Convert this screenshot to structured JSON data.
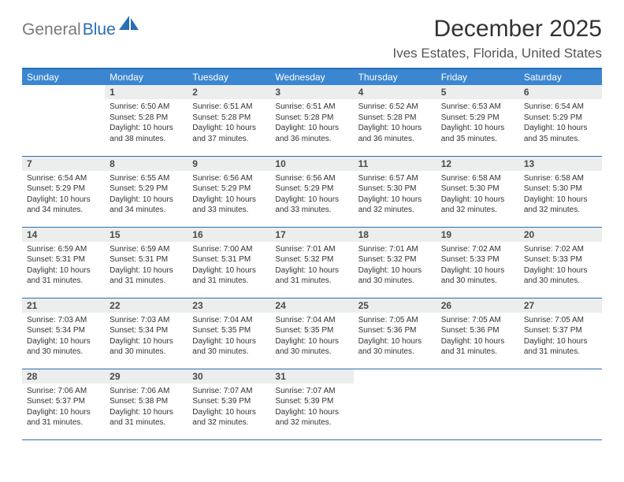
{
  "logo": {
    "part1": "General",
    "part2": "Blue"
  },
  "title": "December 2025",
  "location": "Ives Estates, Florida, United States",
  "colors": {
    "header_bg": "#3a86d1",
    "border": "#2a6db6",
    "daynum_bg": "#eceded",
    "logo_gray": "#7a7a7a",
    "logo_blue": "#2a6db6"
  },
  "weekdays": [
    "Sunday",
    "Monday",
    "Tuesday",
    "Wednesday",
    "Thursday",
    "Friday",
    "Saturday"
  ],
  "weeks": [
    [
      {
        "n": "",
        "sr": "",
        "ss": "",
        "dl": ""
      },
      {
        "n": "1",
        "sr": "Sunrise: 6:50 AM",
        "ss": "Sunset: 5:28 PM",
        "dl": "Daylight: 10 hours and 38 minutes."
      },
      {
        "n": "2",
        "sr": "Sunrise: 6:51 AM",
        "ss": "Sunset: 5:28 PM",
        "dl": "Daylight: 10 hours and 37 minutes."
      },
      {
        "n": "3",
        "sr": "Sunrise: 6:51 AM",
        "ss": "Sunset: 5:28 PM",
        "dl": "Daylight: 10 hours and 36 minutes."
      },
      {
        "n": "4",
        "sr": "Sunrise: 6:52 AM",
        "ss": "Sunset: 5:28 PM",
        "dl": "Daylight: 10 hours and 36 minutes."
      },
      {
        "n": "5",
        "sr": "Sunrise: 6:53 AM",
        "ss": "Sunset: 5:29 PM",
        "dl": "Daylight: 10 hours and 35 minutes."
      },
      {
        "n": "6",
        "sr": "Sunrise: 6:54 AM",
        "ss": "Sunset: 5:29 PM",
        "dl": "Daylight: 10 hours and 35 minutes."
      }
    ],
    [
      {
        "n": "7",
        "sr": "Sunrise: 6:54 AM",
        "ss": "Sunset: 5:29 PM",
        "dl": "Daylight: 10 hours and 34 minutes."
      },
      {
        "n": "8",
        "sr": "Sunrise: 6:55 AM",
        "ss": "Sunset: 5:29 PM",
        "dl": "Daylight: 10 hours and 34 minutes."
      },
      {
        "n": "9",
        "sr": "Sunrise: 6:56 AM",
        "ss": "Sunset: 5:29 PM",
        "dl": "Daylight: 10 hours and 33 minutes."
      },
      {
        "n": "10",
        "sr": "Sunrise: 6:56 AM",
        "ss": "Sunset: 5:29 PM",
        "dl": "Daylight: 10 hours and 33 minutes."
      },
      {
        "n": "11",
        "sr": "Sunrise: 6:57 AM",
        "ss": "Sunset: 5:30 PM",
        "dl": "Daylight: 10 hours and 32 minutes."
      },
      {
        "n": "12",
        "sr": "Sunrise: 6:58 AM",
        "ss": "Sunset: 5:30 PM",
        "dl": "Daylight: 10 hours and 32 minutes."
      },
      {
        "n": "13",
        "sr": "Sunrise: 6:58 AM",
        "ss": "Sunset: 5:30 PM",
        "dl": "Daylight: 10 hours and 32 minutes."
      }
    ],
    [
      {
        "n": "14",
        "sr": "Sunrise: 6:59 AM",
        "ss": "Sunset: 5:31 PM",
        "dl": "Daylight: 10 hours and 31 minutes."
      },
      {
        "n": "15",
        "sr": "Sunrise: 6:59 AM",
        "ss": "Sunset: 5:31 PM",
        "dl": "Daylight: 10 hours and 31 minutes."
      },
      {
        "n": "16",
        "sr": "Sunrise: 7:00 AM",
        "ss": "Sunset: 5:31 PM",
        "dl": "Daylight: 10 hours and 31 minutes."
      },
      {
        "n": "17",
        "sr": "Sunrise: 7:01 AM",
        "ss": "Sunset: 5:32 PM",
        "dl": "Daylight: 10 hours and 31 minutes."
      },
      {
        "n": "18",
        "sr": "Sunrise: 7:01 AM",
        "ss": "Sunset: 5:32 PM",
        "dl": "Daylight: 10 hours and 30 minutes."
      },
      {
        "n": "19",
        "sr": "Sunrise: 7:02 AM",
        "ss": "Sunset: 5:33 PM",
        "dl": "Daylight: 10 hours and 30 minutes."
      },
      {
        "n": "20",
        "sr": "Sunrise: 7:02 AM",
        "ss": "Sunset: 5:33 PM",
        "dl": "Daylight: 10 hours and 30 minutes."
      }
    ],
    [
      {
        "n": "21",
        "sr": "Sunrise: 7:03 AM",
        "ss": "Sunset: 5:34 PM",
        "dl": "Daylight: 10 hours and 30 minutes."
      },
      {
        "n": "22",
        "sr": "Sunrise: 7:03 AM",
        "ss": "Sunset: 5:34 PM",
        "dl": "Daylight: 10 hours and 30 minutes."
      },
      {
        "n": "23",
        "sr": "Sunrise: 7:04 AM",
        "ss": "Sunset: 5:35 PM",
        "dl": "Daylight: 10 hours and 30 minutes."
      },
      {
        "n": "24",
        "sr": "Sunrise: 7:04 AM",
        "ss": "Sunset: 5:35 PM",
        "dl": "Daylight: 10 hours and 30 minutes."
      },
      {
        "n": "25",
        "sr": "Sunrise: 7:05 AM",
        "ss": "Sunset: 5:36 PM",
        "dl": "Daylight: 10 hours and 30 minutes."
      },
      {
        "n": "26",
        "sr": "Sunrise: 7:05 AM",
        "ss": "Sunset: 5:36 PM",
        "dl": "Daylight: 10 hours and 31 minutes."
      },
      {
        "n": "27",
        "sr": "Sunrise: 7:05 AM",
        "ss": "Sunset: 5:37 PM",
        "dl": "Daylight: 10 hours and 31 minutes."
      }
    ],
    [
      {
        "n": "28",
        "sr": "Sunrise: 7:06 AM",
        "ss": "Sunset: 5:37 PM",
        "dl": "Daylight: 10 hours and 31 minutes."
      },
      {
        "n": "29",
        "sr": "Sunrise: 7:06 AM",
        "ss": "Sunset: 5:38 PM",
        "dl": "Daylight: 10 hours and 31 minutes."
      },
      {
        "n": "30",
        "sr": "Sunrise: 7:07 AM",
        "ss": "Sunset: 5:39 PM",
        "dl": "Daylight: 10 hours and 32 minutes."
      },
      {
        "n": "31",
        "sr": "Sunrise: 7:07 AM",
        "ss": "Sunset: 5:39 PM",
        "dl": "Daylight: 10 hours and 32 minutes."
      },
      {
        "n": "",
        "sr": "",
        "ss": "",
        "dl": ""
      },
      {
        "n": "",
        "sr": "",
        "ss": "",
        "dl": ""
      },
      {
        "n": "",
        "sr": "",
        "ss": "",
        "dl": ""
      }
    ]
  ]
}
